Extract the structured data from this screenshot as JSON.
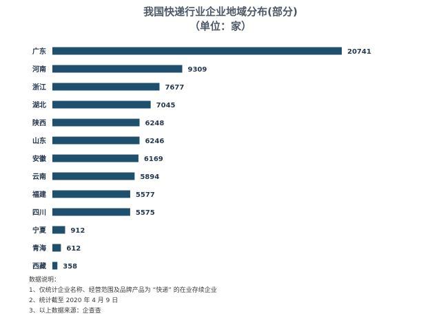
{
  "chart_data": {
    "type": "bar",
    "orientation": "horizontal",
    "title": "我国快递行业企业地域分布(部分)",
    "subtitle": "（单位：家）",
    "categories": [
      "广东",
      "河南",
      "浙江",
      "湖北",
      "陕西",
      "山东",
      "安徽",
      "云南",
      "福建",
      "四川",
      "宁夏",
      "青海",
      "西藏"
    ],
    "values": [
      20741,
      9309,
      7677,
      7045,
      6248,
      6246,
      6169,
      5894,
      5577,
      5575,
      912,
      612,
      358
    ],
    "xlim": [
      0,
      20741
    ],
    "grid": false,
    "legend": "none",
    "bar_color": "#1e4f6d"
  },
  "notes": {
    "heading": "数据说明：",
    "items": [
      "1、仅统计企业名称、经营范围及品牌产品为 “快递” 的在业存续企业",
      "2、统计截至 2020 年 4 月 9 日",
      "3、以上数据来源：企查查"
    ]
  }
}
